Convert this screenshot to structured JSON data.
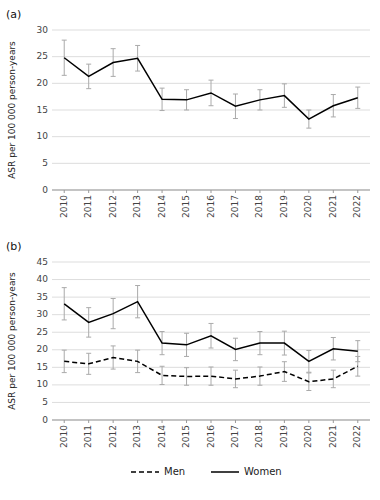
{
  "chart_data": [
    {
      "type": "line",
      "title": "(a)",
      "y_label": "ASR per 100 000 person-years",
      "x": [
        2010,
        2011,
        2012,
        2013,
        2014,
        2015,
        2016,
        2017,
        2018,
        2019,
        2020,
        2021,
        2022
      ],
      "series": [
        {
          "color": "#000000",
          "line_style": "solid",
          "values": [
            24.8,
            21.3,
            23.9,
            24.7,
            17.0,
            16.9,
            18.2,
            15.7,
            16.9,
            17.7,
            13.3,
            15.8,
            17.3
          ],
          "ci_lo": [
            21.5,
            19.0,
            21.3,
            22.3,
            14.9,
            15.0,
            15.8,
            13.4,
            15.0,
            15.5,
            11.6,
            13.7,
            15.3
          ],
          "ci_hi": [
            28.1,
            23.6,
            26.5,
            27.1,
            19.1,
            18.8,
            20.6,
            18.0,
            18.8,
            19.9,
            15.0,
            17.9,
            19.3
          ]
        }
      ],
      "xlim": [
        2009.5,
        2022.5
      ],
      "xticks": [
        2010,
        2011,
        2012,
        2013,
        2014,
        2015,
        2016,
        2017,
        2018,
        2019,
        2020,
        2021,
        2022
      ],
      "ylim": [
        0,
        30
      ],
      "yticks": [
        0,
        5,
        10,
        15,
        20,
        25,
        30
      ],
      "grid": true
    },
    {
      "type": "line",
      "title": "(b)",
      "y_label": "ASR per 100 000 person-years",
      "x": [
        2010,
        2011,
        2012,
        2013,
        2014,
        2015,
        2016,
        2017,
        2018,
        2019,
        2020,
        2021,
        2022
      ],
      "series": [
        {
          "name": "Men",
          "color": "#000000",
          "line_style": "dashed",
          "values": [
            16.7,
            16.0,
            17.8,
            16.7,
            12.7,
            12.4,
            12.5,
            11.7,
            12.5,
            13.8,
            10.9,
            11.7,
            15.3
          ],
          "ci_lo": [
            13.5,
            13.0,
            14.5,
            13.5,
            10.1,
            9.9,
            9.9,
            9.2,
            9.9,
            11.0,
            8.4,
            9.2,
            12.5
          ],
          "ci_hi": [
            19.9,
            19.0,
            21.1,
            19.9,
            15.3,
            14.9,
            15.1,
            14.2,
            15.1,
            16.6,
            13.4,
            14.2,
            18.1
          ]
        },
        {
          "name": "Women",
          "color": "#000000",
          "line_style": "solid",
          "values": [
            33.1,
            27.8,
            30.3,
            33.7,
            21.9,
            21.4,
            24.0,
            20.1,
            21.9,
            21.9,
            16.7,
            20.3,
            19.6
          ],
          "ci_lo": [
            28.5,
            23.6,
            26.0,
            29.1,
            18.6,
            18.1,
            20.5,
            16.9,
            18.6,
            18.5,
            13.6,
            17.1,
            16.6
          ],
          "ci_hi": [
            37.7,
            32.0,
            34.6,
            38.3,
            25.2,
            24.7,
            27.5,
            23.3,
            25.2,
            25.3,
            19.8,
            23.5,
            22.6
          ]
        }
      ],
      "xlim": [
        2009.5,
        2022.5
      ],
      "xticks": [
        2010,
        2011,
        2012,
        2013,
        2014,
        2015,
        2016,
        2017,
        2018,
        2019,
        2020,
        2021,
        2022
      ],
      "ylim": [
        0,
        45
      ],
      "yticks": [
        0,
        5,
        10,
        15,
        20,
        25,
        30,
        35,
        40,
        45
      ],
      "grid": true,
      "legend": "bottom"
    }
  ]
}
